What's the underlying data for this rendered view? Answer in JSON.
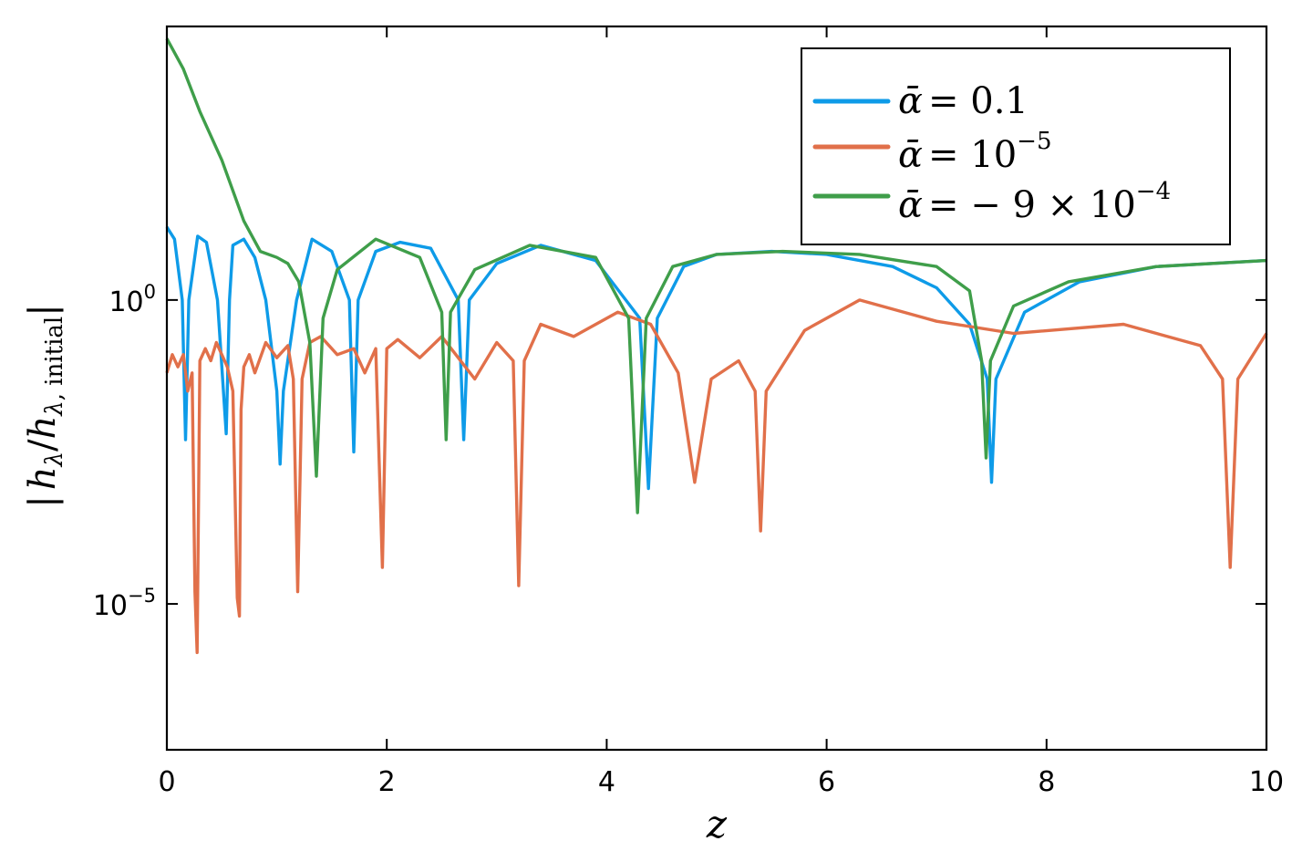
{
  "chart_data": {
    "type": "line",
    "title": "",
    "xlabel": "z",
    "ylabel": "|h_λ/h_λ, initial|",
    "xlim": [
      0,
      10
    ],
    "yscale": "log",
    "ylim_log10": [
      -7.4,
      4.5
    ],
    "grid": false,
    "legend_position": "top-right",
    "x_ticks": [
      "0",
      "2",
      "4",
      "6",
      "8",
      "10"
    ],
    "y_ticks": [
      {
        "base": "10",
        "exp": "0",
        "log10": 0
      },
      {
        "base": "10",
        "exp": "−5",
        "log10": -5
      }
    ],
    "series": [
      {
        "name": "ᾱ = 0.1",
        "legend_lhs": "ᾱ",
        "legend_rhs": "= 0.1",
        "color": "#0e9be8",
        "x": [
          0,
          0.07,
          0.14,
          0.17,
          0.2,
          0.28,
          0.36,
          0.46,
          0.54,
          0.57,
          0.6,
          0.7,
          0.8,
          0.9,
          1.0,
          1.03,
          1.06,
          1.18,
          1.32,
          1.5,
          1.66,
          1.7,
          1.74,
          1.9,
          2.12,
          2.4,
          2.65,
          2.7,
          2.75,
          3.0,
          3.4,
          3.9,
          4.3,
          4.38,
          4.46,
          4.7,
          5.0,
          5.5,
          6.0,
          6.6,
          7.0,
          7.3,
          7.46,
          7.5,
          7.54,
          7.8,
          8.3,
          9.0,
          10.0
        ],
        "log10": [
          1.2,
          1.0,
          0.0,
          -2.3,
          0.0,
          1.05,
          0.95,
          0.0,
          -2.2,
          0.0,
          0.9,
          1.0,
          0.7,
          0.0,
          -1.5,
          -2.7,
          -1.5,
          0.0,
          1.0,
          0.8,
          0.0,
          -2.5,
          0.0,
          0.8,
          0.95,
          0.85,
          0.0,
          -2.3,
          0.0,
          0.6,
          0.9,
          0.65,
          -0.3,
          -3.1,
          -0.3,
          0.55,
          0.75,
          0.8,
          0.75,
          0.55,
          0.2,
          -0.4,
          -1.3,
          -3.0,
          -1.3,
          -0.2,
          0.3,
          0.55,
          0.65
        ]
      },
      {
        "name": "ᾱ = 10⁻⁵",
        "legend_lhs": "ᾱ",
        "legend_rhs": "= 10",
        "legend_exp": "−5",
        "color": "#e1704a",
        "x": [
          0,
          0.05,
          0.1,
          0.15,
          0.19,
          0.23,
          0.255,
          0.275,
          0.3,
          0.35,
          0.4,
          0.45,
          0.5,
          0.55,
          0.6,
          0.64,
          0.66,
          0.675,
          0.7,
          0.75,
          0.8,
          0.9,
          1.0,
          1.1,
          1.15,
          1.19,
          1.23,
          1.3,
          1.4,
          1.55,
          1.7,
          1.8,
          1.9,
          1.96,
          2.0,
          2.1,
          2.3,
          2.5,
          2.8,
          3.0,
          3.15,
          3.2,
          3.25,
          3.4,
          3.7,
          4.1,
          4.4,
          4.65,
          4.8,
          4.95,
          5.2,
          5.35,
          5.4,
          5.45,
          5.8,
          6.3,
          7.0,
          7.7,
          8.7,
          9.4,
          9.6,
          9.67,
          9.74,
          10.0
        ],
        "log10": [
          -1.2,
          -0.9,
          -1.1,
          -0.9,
          -1.5,
          -1.2,
          -4.8,
          -5.8,
          -1.0,
          -0.8,
          -1.0,
          -0.7,
          -0.9,
          -1.1,
          -1.5,
          -4.9,
          -5.2,
          -1.8,
          -1.1,
          -0.9,
          -1.2,
          -0.7,
          -0.95,
          -0.75,
          -1.3,
          -4.8,
          -1.3,
          -0.7,
          -0.6,
          -0.9,
          -0.8,
          -1.2,
          -0.8,
          -4.4,
          -0.8,
          -0.65,
          -0.95,
          -0.6,
          -1.3,
          -0.7,
          -1.0,
          -4.7,
          -1.0,
          -0.4,
          -0.6,
          -0.2,
          -0.4,
          -1.2,
          -3.0,
          -1.3,
          -1.0,
          -1.5,
          -3.8,
          -1.5,
          -0.5,
          0.0,
          -0.35,
          -0.55,
          -0.4,
          -0.75,
          -1.3,
          -4.4,
          -1.3,
          -0.55
        ]
      },
      {
        "name": "ᾱ = − 9 × 10⁻⁴",
        "legend_lhs": "ᾱ",
        "legend_rhs": "= − 9 × 10",
        "legend_exp": "−4",
        "color": "#3f9e4a",
        "x": [
          0,
          0.15,
          0.3,
          0.5,
          0.7,
          0.85,
          1.0,
          1.1,
          1.2,
          1.3,
          1.36,
          1.42,
          1.55,
          1.9,
          2.3,
          2.5,
          2.54,
          2.58,
          2.8,
          3.3,
          3.9,
          4.2,
          4.28,
          4.36,
          4.6,
          5.0,
          5.6,
          6.3,
          7.0,
          7.3,
          7.41,
          7.45,
          7.49,
          7.7,
          8.2,
          9.0,
          10.0
        ],
        "log10": [
          4.3,
          3.8,
          3.1,
          2.3,
          1.3,
          0.8,
          0.7,
          0.6,
          0.3,
          -0.7,
          -2.9,
          -0.3,
          0.5,
          1.0,
          0.7,
          -0.2,
          -2.3,
          -0.2,
          0.5,
          0.9,
          0.7,
          -0.3,
          -3.5,
          -0.3,
          0.55,
          0.75,
          0.8,
          0.75,
          0.55,
          0.15,
          -1.0,
          -2.6,
          -1.0,
          -0.1,
          0.3,
          0.55,
          0.65
        ]
      }
    ]
  }
}
